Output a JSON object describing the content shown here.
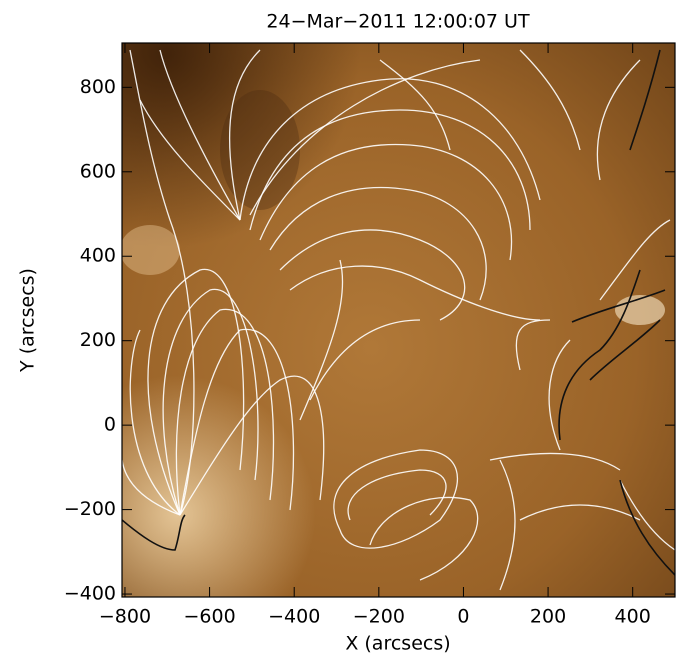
{
  "chart_data": {
    "type": "image",
    "title": "24−Mar−2011  12:00:07  UT",
    "xlabel": "X (arcsecs)",
    "ylabel": "Y (arcsecs)",
    "xlim": [
      -807,
      500
    ],
    "ylim": [
      -407,
      905
    ],
    "xticks": [
      {
        "value": -800,
        "label": "−800"
      },
      {
        "value": -600,
        "label": "−600"
      },
      {
        "value": -400,
        "label": "−400"
      },
      {
        "value": -200,
        "label": "−200"
      },
      0,
      200,
      400
    ],
    "yticks": [
      {
        "value": -400,
        "label": "−400"
      },
      {
        "value": -200,
        "label": "−200"
      },
      0,
      200,
      400,
      600,
      800
    ]
  }
}
